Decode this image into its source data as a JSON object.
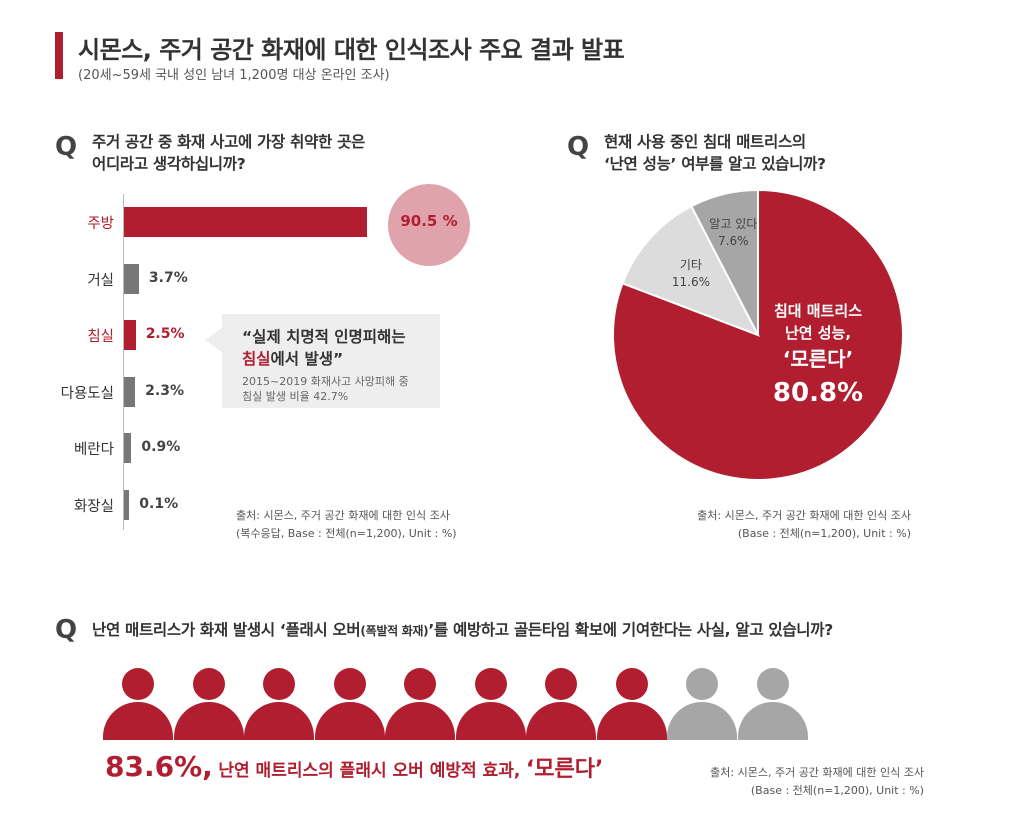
{
  "header": {
    "title": "시몬스, 주거 공간 화재에 대한 인식조사 주요 결과 발표",
    "subtitle": "(20세~59세 국내 성인 남녀 1,200명 대상 온라인 조사)"
  },
  "q1": {
    "q_mark": "Q",
    "line1": "주거 공간 중 화재 사고에 가장 취약한 곳은",
    "line2": "어디라고 생각하십니까?",
    "callout": {
      "quote_open": "“실제 치명적 인명피해는",
      "quote_hl": "침실",
      "quote_rest": "에서 발생”",
      "note1": "2015~2019 화재사고 사망피해 중",
      "note2": "침실 발생 비율 42.7%"
    },
    "source1": "출처: 시몬스, 주거 공간 화재에 대한 인식 조사",
    "source2": "(복수응답, Base : 전체(n=1,200), Unit : %)"
  },
  "q2": {
    "q_mark": "Q",
    "line1": "현재 사용 중인 침대 매트리스의",
    "line2": "‘난연 성능’ 여부를 알고 있습니까?",
    "big_label1": "침대 매트리스",
    "big_label2": "난연 성능,",
    "big_label3": "‘모른다’",
    "big_value": "80.8%",
    "source1": "출처: 시몬스, 주거 공간 화재에 대한 인식 조사",
    "source2": "(Base : 전체(n=1,200), Unit : %)"
  },
  "q3": {
    "q_mark": "Q",
    "text_a": "난연 매트리스가 화재 발생시 ‘플래시 오버",
    "text_small": "(폭발적 화재)",
    "text_b": "’를 예방하고 골든타임 확보에 기여한다는 사실, 알고 있습니까?",
    "stat_pct": "83.6%,",
    "stat_text": "난연 매트리스의 플래시 오버 예방적 효과,",
    "stat_quote": "‘모른다’",
    "source1": "출처: 시몬스, 주거 공간 화재에 대한 인식 조사",
    "source2": "(Base : 전체(n=1,200), Unit : %)",
    "people_total": 10,
    "people_filled": 8
  },
  "colors": {
    "accent": "#b01e2f",
    "accent_light": "#e0a3ab",
    "bar_gray": "#777777",
    "pie_mid": "#dcdcdc",
    "pie_dark": "#a6a6a6",
    "person_gray": "#a6a6a6"
  },
  "chart_data": [
    {
      "type": "bar",
      "orientation": "horizontal",
      "title": "주거 공간 중 화재 사고에 가장 취약한 곳은 어디라고 생각하십니까?",
      "categories": [
        "주방",
        "거실",
        "침실",
        "다용도실",
        "베란다",
        "화장실"
      ],
      "values": [
        90.5,
        3.7,
        2.5,
        2.3,
        0.9,
        0.1
      ],
      "value_labels": [
        "90.5 %",
        "3.7%",
        "2.5%",
        "2.3%",
        "0.9%",
        "0.1%"
      ],
      "highlighted": [
        "주방",
        "침실"
      ],
      "unit": "%",
      "xlim": [
        0,
        100
      ]
    },
    {
      "type": "pie",
      "title": "현재 사용 중인 침대 매트리스의 ‘난연 성능’ 여부를 알고 있습니까?",
      "slices": [
        {
          "label": "모른다",
          "value": 80.8,
          "value_label": "80.8%"
        },
        {
          "label": "기타",
          "value": 11.6,
          "value_label": "11.6%"
        },
        {
          "label": "알고 있다",
          "value": 7.6,
          "value_label": "7.6%"
        }
      ]
    }
  ]
}
